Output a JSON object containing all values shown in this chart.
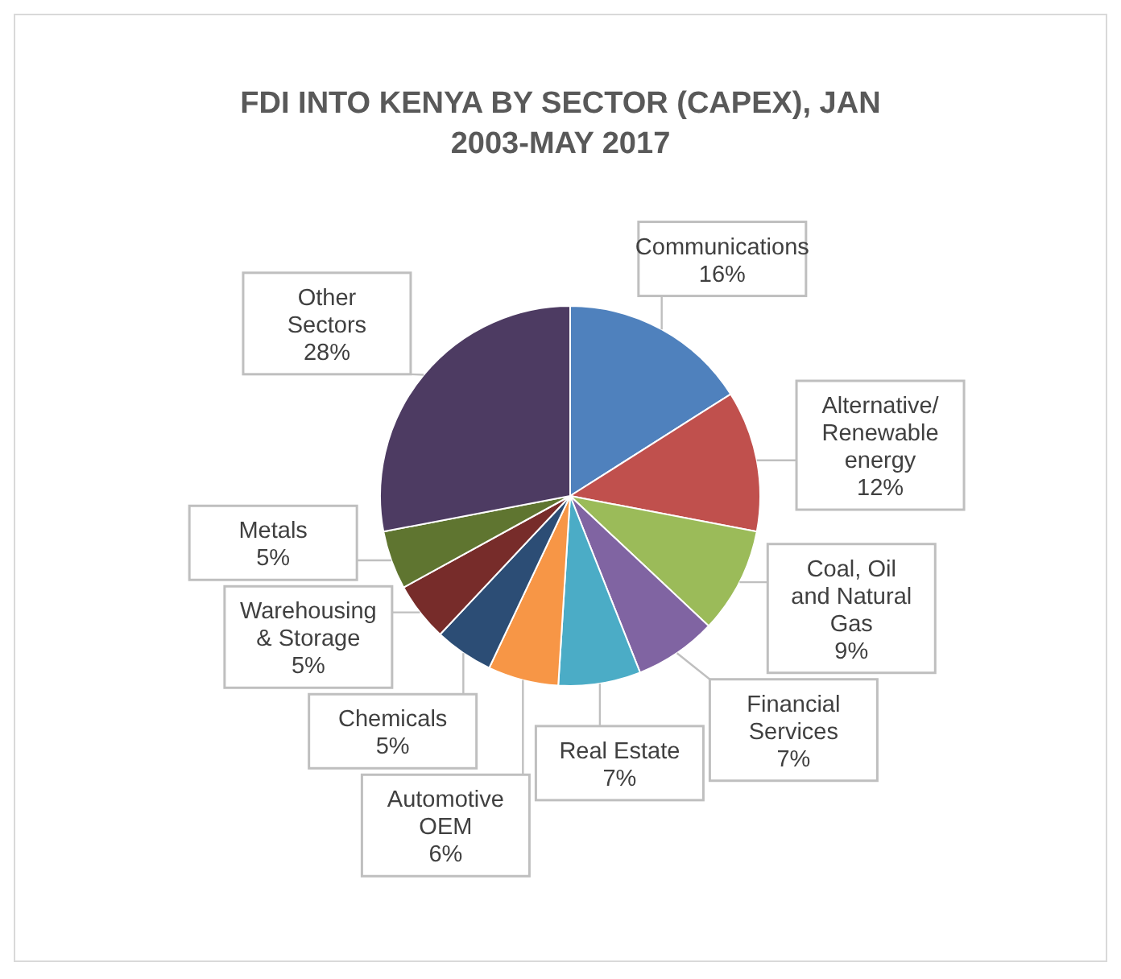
{
  "chart_data": {
    "type": "pie",
    "title": "FDI INTO KENYA BY SECTOR (CAPEX), JAN 2003-MAY 2017",
    "categories": [
      "Communications",
      "Alternative/Renewable energy",
      "Coal, Oil and Natural Gas",
      "Financial Services",
      "Real Estate",
      "Automotive OEM",
      "Chemicals",
      "Warehousing & Storage",
      "Metals",
      "Other Sectors"
    ],
    "values": [
      16,
      12,
      9,
      7,
      7,
      6,
      5,
      5,
      5,
      28
    ],
    "colors": [
      "#4f81bd",
      "#c0504d",
      "#9bbb59",
      "#8064a2",
      "#4bacc6",
      "#f79646",
      "#2c4d75",
      "#772c2a",
      "#5f7530",
      "#4d3b62"
    ],
    "value_labels": [
      "16%",
      "12%",
      "9%",
      "7%",
      "7%",
      "6%",
      "5%",
      "5%",
      "5%",
      "28%"
    ]
  }
}
